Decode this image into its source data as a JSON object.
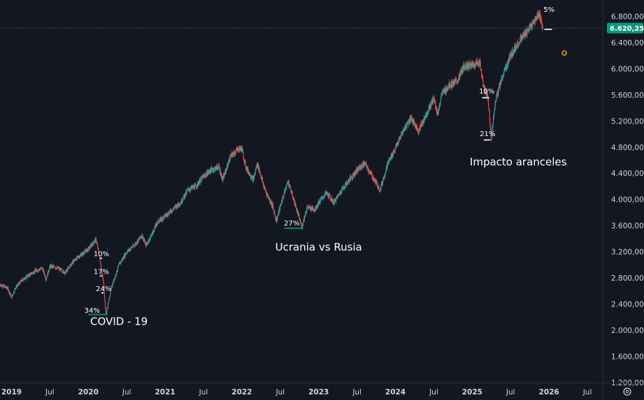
{
  "chart_data": {
    "type": "candlestick",
    "y_axis": {
      "min": 1200,
      "max": 7050,
      "ticks": [
        "1.200,00",
        "1.600,00",
        "2.000,00",
        "2.400,00",
        "2.800,00",
        "3.200,00",
        "3.600,00",
        "4.000,00",
        "4.400,00",
        "4.800,00",
        "5.200,00",
        "5.600,00",
        "6.000,00",
        "6.400,00",
        "6.800,00"
      ],
      "tick_values": [
        1200,
        1600,
        2000,
        2400,
        2800,
        3200,
        3600,
        4000,
        4400,
        4800,
        5200,
        5600,
        6000,
        6400,
        6800
      ]
    },
    "x_axis": {
      "start": 2018.85,
      "end": 2026.7,
      "ticks": [
        {
          "label": "2019",
          "t": 2019.0,
          "bold": true
        },
        {
          "label": "Jul",
          "t": 2019.5,
          "bold": false
        },
        {
          "label": "2020",
          "t": 2020.0,
          "bold": true
        },
        {
          "label": "Jul",
          "t": 2020.5,
          "bold": false
        },
        {
          "label": "2021",
          "t": 2021.0,
          "bold": true
        },
        {
          "label": "Jul",
          "t": 2021.5,
          "bold": false
        },
        {
          "label": "2022",
          "t": 2022.0,
          "bold": true
        },
        {
          "label": "Jul",
          "t": 2022.5,
          "bold": false
        },
        {
          "label": "2023",
          "t": 2023.0,
          "bold": true
        },
        {
          "label": "Jul",
          "t": 2023.5,
          "bold": false
        },
        {
          "label": "2024",
          "t": 2024.0,
          "bold": true
        },
        {
          "label": "Jul",
          "t": 2024.5,
          "bold": false
        },
        {
          "label": "2025",
          "t": 2025.0,
          "bold": true
        },
        {
          "label": "Jul",
          "t": 2025.5,
          "bold": false
        },
        {
          "label": "2026",
          "t": 2026.0,
          "bold": true
        },
        {
          "label": "Jul",
          "t": 2026.5,
          "bold": false
        }
      ]
    },
    "price_path": [
      [
        2018.85,
        2700
      ],
      [
        2018.95,
        2640
      ],
      [
        2019.0,
        2500
      ],
      [
        2019.05,
        2650
      ],
      [
        2019.15,
        2780
      ],
      [
        2019.3,
        2900
      ],
      [
        2019.4,
        2950
      ],
      [
        2019.45,
        2780
      ],
      [
        2019.5,
        2980
      ],
      [
        2019.6,
        2950
      ],
      [
        2019.7,
        2880
      ],
      [
        2019.8,
        3050
      ],
      [
        2019.9,
        3150
      ],
      [
        2020.0,
        3240
      ],
      [
        2020.1,
        3390
      ],
      [
        2020.15,
        3100
      ],
      [
        2020.2,
        2700
      ],
      [
        2020.23,
        2240
      ],
      [
        2020.3,
        2650
      ],
      [
        2020.4,
        3000
      ],
      [
        2020.5,
        3200
      ],
      [
        2020.6,
        3300
      ],
      [
        2020.7,
        3450
      ],
      [
        2020.75,
        3300
      ],
      [
        2020.8,
        3400
      ],
      [
        2020.9,
        3650
      ],
      [
        2021.0,
        3750
      ],
      [
        2021.1,
        3850
      ],
      [
        2021.2,
        3950
      ],
      [
        2021.3,
        4150
      ],
      [
        2021.4,
        4200
      ],
      [
        2021.5,
        4350
      ],
      [
        2021.6,
        4450
      ],
      [
        2021.7,
        4500
      ],
      [
        2021.75,
        4300
      ],
      [
        2021.85,
        4650
      ],
      [
        2021.95,
        4770
      ],
      [
        2022.0,
        4780
      ],
      [
        2022.05,
        4500
      ],
      [
        2022.15,
        4300
      ],
      [
        2022.2,
        4550
      ],
      [
        2022.3,
        4150
      ],
      [
        2022.4,
        3900
      ],
      [
        2022.45,
        3670
      ],
      [
        2022.5,
        3900
      ],
      [
        2022.6,
        4280
      ],
      [
        2022.7,
        3900
      ],
      [
        2022.78,
        3580
      ],
      [
        2022.85,
        3880
      ],
      [
        2022.95,
        3850
      ],
      [
        2023.0,
        3950
      ],
      [
        2023.1,
        4100
      ],
      [
        2023.2,
        3950
      ],
      [
        2023.3,
        4150
      ],
      [
        2023.4,
        4300
      ],
      [
        2023.5,
        4450
      ],
      [
        2023.6,
        4550
      ],
      [
        2023.7,
        4350
      ],
      [
        2023.8,
        4150
      ],
      [
        2023.9,
        4550
      ],
      [
        2024.0,
        4780
      ],
      [
        2024.1,
        5050
      ],
      [
        2024.2,
        5250
      ],
      [
        2024.3,
        5050
      ],
      [
        2024.4,
        5300
      ],
      [
        2024.5,
        5550
      ],
      [
        2024.55,
        5300
      ],
      [
        2024.6,
        5600
      ],
      [
        2024.7,
        5750
      ],
      [
        2024.8,
        5800
      ],
      [
        2024.9,
        6050
      ],
      [
        2025.0,
        6050
      ],
      [
        2025.1,
        6100
      ],
      [
        2025.15,
        5700
      ],
      [
        2025.2,
        5600
      ],
      [
        2025.25,
        4950
      ],
      [
        2025.3,
        5500
      ],
      [
        2025.4,
        5900
      ],
      [
        2025.5,
        6200
      ],
      [
        2025.6,
        6400
      ],
      [
        2025.7,
        6550
      ],
      [
        2025.8,
        6700
      ],
      [
        2025.87,
        6850
      ],
      [
        2025.92,
        6620
      ]
    ],
    "current_price": 6620.25,
    "current_price_label": "6.620,25",
    "annotations": [
      {
        "text": "10%",
        "t": 2020.17,
        "price": 3130,
        "line_t1": 2020.15,
        "line_t2": 2020.18,
        "line_price": 3100,
        "color": "#ffffff"
      },
      {
        "text": "17%",
        "t": 2020.17,
        "price": 2860,
        "line_t1": 2020.15,
        "line_t2": 2020.18,
        "line_price": 2830,
        "color": "#ffffff"
      },
      {
        "text": "24%",
        "t": 2020.2,
        "price": 2600,
        "line_t1": 2020.17,
        "line_t2": 2020.2,
        "line_price": 2570,
        "color": "#ffffff"
      },
      {
        "text": "34%",
        "t": 2020.05,
        "price": 2270,
        "line_t1": 2020.0,
        "line_t2": 2020.25,
        "line_price": 2240,
        "color": "#089981"
      },
      {
        "text": "27%",
        "t": 2022.65,
        "price": 3600,
        "line_t1": 2022.55,
        "line_t2": 2022.8,
        "line_price": 3560,
        "color": "#089981"
      },
      {
        "text": "10%",
        "t": 2025.19,
        "price": 5620,
        "line_t1": 2025.13,
        "line_t2": 2025.22,
        "line_price": 5555,
        "color": "#ffffff"
      },
      {
        "text": "21%",
        "t": 2025.2,
        "price": 4970,
        "line_t1": 2025.15,
        "line_t2": 2025.24,
        "line_price": 4910,
        "color": "#ffffff"
      },
      {
        "text": "5%",
        "t": 2026.0,
        "price": 6870,
        "line_t1": 2025.94,
        "line_t2": 2026.04,
        "line_price": 6600,
        "color": "#ffffff"
      }
    ],
    "event_labels": [
      {
        "text": "COVID - 19",
        "t": 2020.4,
        "price": 2080
      },
      {
        "text": "Ucrania vs Rusia",
        "t": 2023.0,
        "price": 3220
      },
      {
        "text": "Impacto aranceles",
        "t": 2025.6,
        "price": 4520
      }
    ],
    "colors": {
      "background": "#131722",
      "up": "#26a69a",
      "down": "#ef5350",
      "axis_text": "#d1d4dc",
      "price_line": "#26a69a",
      "price_tag": "#089981",
      "marker": "#ff9800"
    }
  }
}
